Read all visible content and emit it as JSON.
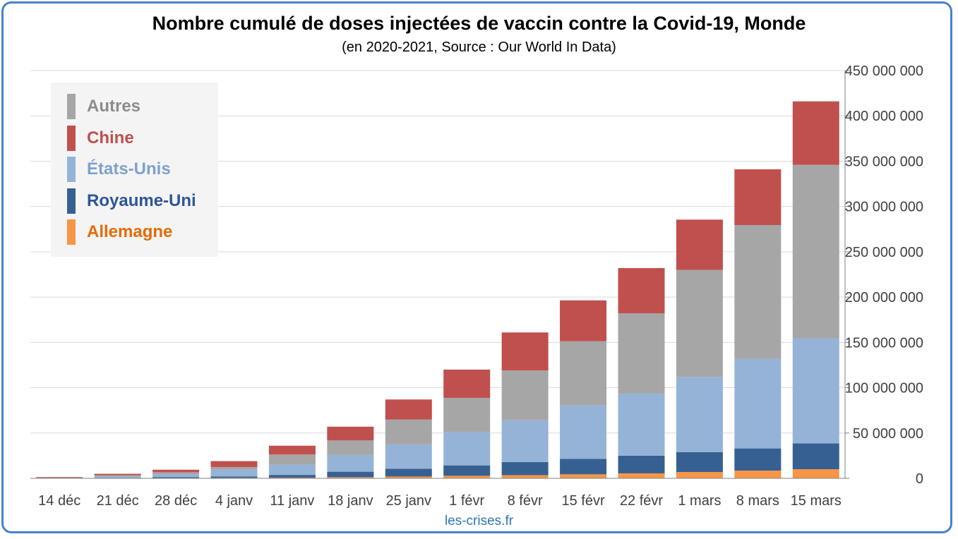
{
  "title": "Nombre cumulé de doses injectées de vaccin contre la Covid-19, Monde",
  "subtitle": "(en 2020-2021, Source : Our World In Data)",
  "source": "les-crises.fr",
  "colors": {
    "Allemagne": "#f79646",
    "Royaume-Uni": "#376092",
    "États-Unis": "#95b3d7",
    "Autres": "#a6a6a6",
    "Chine": "#c0504d"
  },
  "legend": [
    {
      "label": "Autres",
      "color": "#a6a6a6",
      "text_color": "#8c8c8c"
    },
    {
      "label": "Chine",
      "color": "#c0504d",
      "text_color": "#c0504d"
    },
    {
      "label": "États-Unis",
      "color": "#95b3d7",
      "text_color": "#7fa1cc"
    },
    {
      "label": "Royaume-Uni",
      "color": "#376092",
      "text_color": "#2f5597"
    },
    {
      "label": "Allemagne",
      "color": "#f79646",
      "text_color": "#e36c09"
    }
  ],
  "chart_data": {
    "type": "bar",
    "stacked": true,
    "title": "Nombre cumulé de doses injectées de vaccin contre la Covid-19, Monde",
    "subtitle": "(en 2020-2021, Source : Our World In Data)",
    "categories": [
      "14 déc",
      "21 déc",
      "28 déc",
      "4 janv",
      "11 janv",
      "18 janv",
      "25 janv",
      "1 févr",
      "8 févr",
      "15 févr",
      "22 févr",
      "1 mars",
      "8 mars",
      "15 mars"
    ],
    "series": [
      {
        "name": "Allemagne",
        "values": [
          0,
          0,
          200000,
          500000,
          800000,
          1300000,
          2000000,
          2800000,
          3500000,
          4400000,
          5500000,
          7000000,
          8500000,
          10000000
        ]
      },
      {
        "name": "Royaume-Uni",
        "values": [
          100000,
          600000,
          1000000,
          1500000,
          3000000,
          6000000,
          8500000,
          11500000,
          14500000,
          17000000,
          19500000,
          22000000,
          24500000,
          28500000
        ]
      },
      {
        "name": "États-Unis",
        "values": [
          200000,
          1500000,
          3000000,
          7500000,
          11500000,
          18500000,
          27000000,
          36500000,
          46000000,
          59000000,
          68500000,
          83000000,
          99000000,
          116000000
        ]
      },
      {
        "name": "Autres",
        "values": [
          600000,
          1400000,
          2500000,
          3000000,
          11000000,
          16000000,
          27500000,
          38000000,
          55000000,
          71000000,
          88500000,
          118000000,
          147500000,
          191500000
        ]
      },
      {
        "name": "Chine",
        "values": [
          600000,
          1500000,
          2800000,
          6500000,
          9700000,
          15200000,
          22000000,
          31200000,
          42000000,
          45000000,
          50000000,
          55500000,
          61500000,
          70000000
        ]
      }
    ],
    "y_ticks": [
      "0",
      "50 000 000",
      "100 000 000",
      "150 000 000",
      "200 000 000",
      "250 000 000",
      "300 000 000",
      "350 000 000",
      "400 000 000",
      "450 000 000"
    ],
    "ylim": [
      0,
      450000000
    ],
    "y_axis_side": "right",
    "grid": true,
    "legend_position": "top-left"
  }
}
